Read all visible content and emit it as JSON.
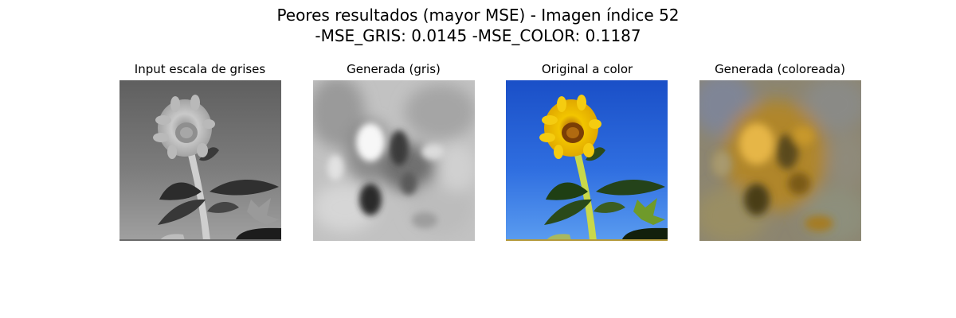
{
  "figure": {
    "suptitle_line1": "Peores resultados (mayor MSE) - Imagen índice 52",
    "suptitle_line2": "-MSE_GRIS: 0.0145 -MSE_COLOR: 0.1187"
  },
  "panels": [
    {
      "title": "Input escala de grises"
    },
    {
      "title": "Generada (gris)"
    },
    {
      "title": "Original a color"
    },
    {
      "title": "Generada (coloreada)"
    }
  ]
}
